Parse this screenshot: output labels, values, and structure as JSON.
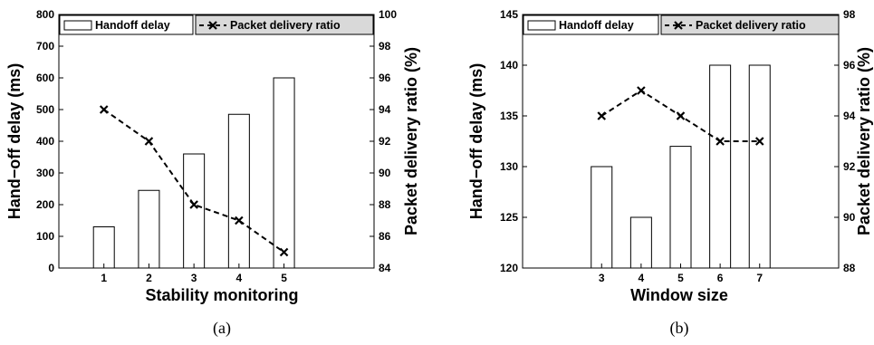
{
  "colors": {
    "bar_fill": "#ffffff",
    "stroke": "#000000",
    "legend_line_box": "#d9d9d9"
  },
  "chart_data": [
    {
      "type": "bar",
      "caption": "(a)",
      "xlabel": "Stability monitoring",
      "ylabel": "Hand−off delay (ms)",
      "ylabel_right": "Packet delivery ratio (%)",
      "xlim": [
        0,
        7
      ],
      "ylim": [
        0,
        800
      ],
      "ylim_right": [
        84,
        100
      ],
      "x": [
        1,
        2,
        3,
        4,
        5
      ],
      "x_ticks": [
        "1",
        "2",
        "3",
        "4",
        "5"
      ],
      "y_ticks": [
        "0",
        "100",
        "200",
        "300",
        "400",
        "500",
        "600",
        "700",
        "800"
      ],
      "y_ticks_right": [
        "84",
        "86",
        "88",
        "90",
        "92",
        "94",
        "96",
        "98",
        "100"
      ],
      "legend": {
        "bar": "Handoff delay",
        "line": "Packet delivery ratio",
        "placement": "top"
      },
      "series": [
        {
          "name": "Handoff delay",
          "kind": "bar",
          "axis": "left",
          "values": [
            130,
            245,
            360,
            485,
            600
          ]
        },
        {
          "name": "Packet delivery ratio",
          "kind": "line",
          "style": "dashed-x",
          "axis": "right",
          "values": [
            94,
            92,
            88,
            87,
            85
          ]
        }
      ]
    },
    {
      "type": "bar",
      "caption": "(b)",
      "xlabel": "Window size",
      "ylabel": "Hand−off delay (ms)",
      "ylabel_right": "Packet delivery ratio (%)",
      "xlim": [
        1,
        9
      ],
      "ylim": [
        120,
        145
      ],
      "ylim_right": [
        88,
        98
      ],
      "x": [
        3,
        4,
        5,
        6,
        7
      ],
      "x_ticks": [
        "3",
        "4",
        "5",
        "6",
        "7"
      ],
      "y_ticks": [
        "120",
        "125",
        "130",
        "135",
        "140",
        "145"
      ],
      "y_ticks_right": [
        "88",
        "90",
        "92",
        "94",
        "96",
        "98"
      ],
      "legend": {
        "bar": "Handoff delay",
        "line": "Packet delivery ratio",
        "placement": "top"
      },
      "series": [
        {
          "name": "Handoff delay",
          "kind": "bar",
          "axis": "left",
          "values": [
            130,
            125,
            132,
            140,
            140
          ]
        },
        {
          "name": "Packet delivery ratio",
          "kind": "line",
          "style": "dashed-x",
          "axis": "right",
          "values": [
            94,
            95,
            94,
            93,
            93
          ]
        }
      ]
    }
  ]
}
